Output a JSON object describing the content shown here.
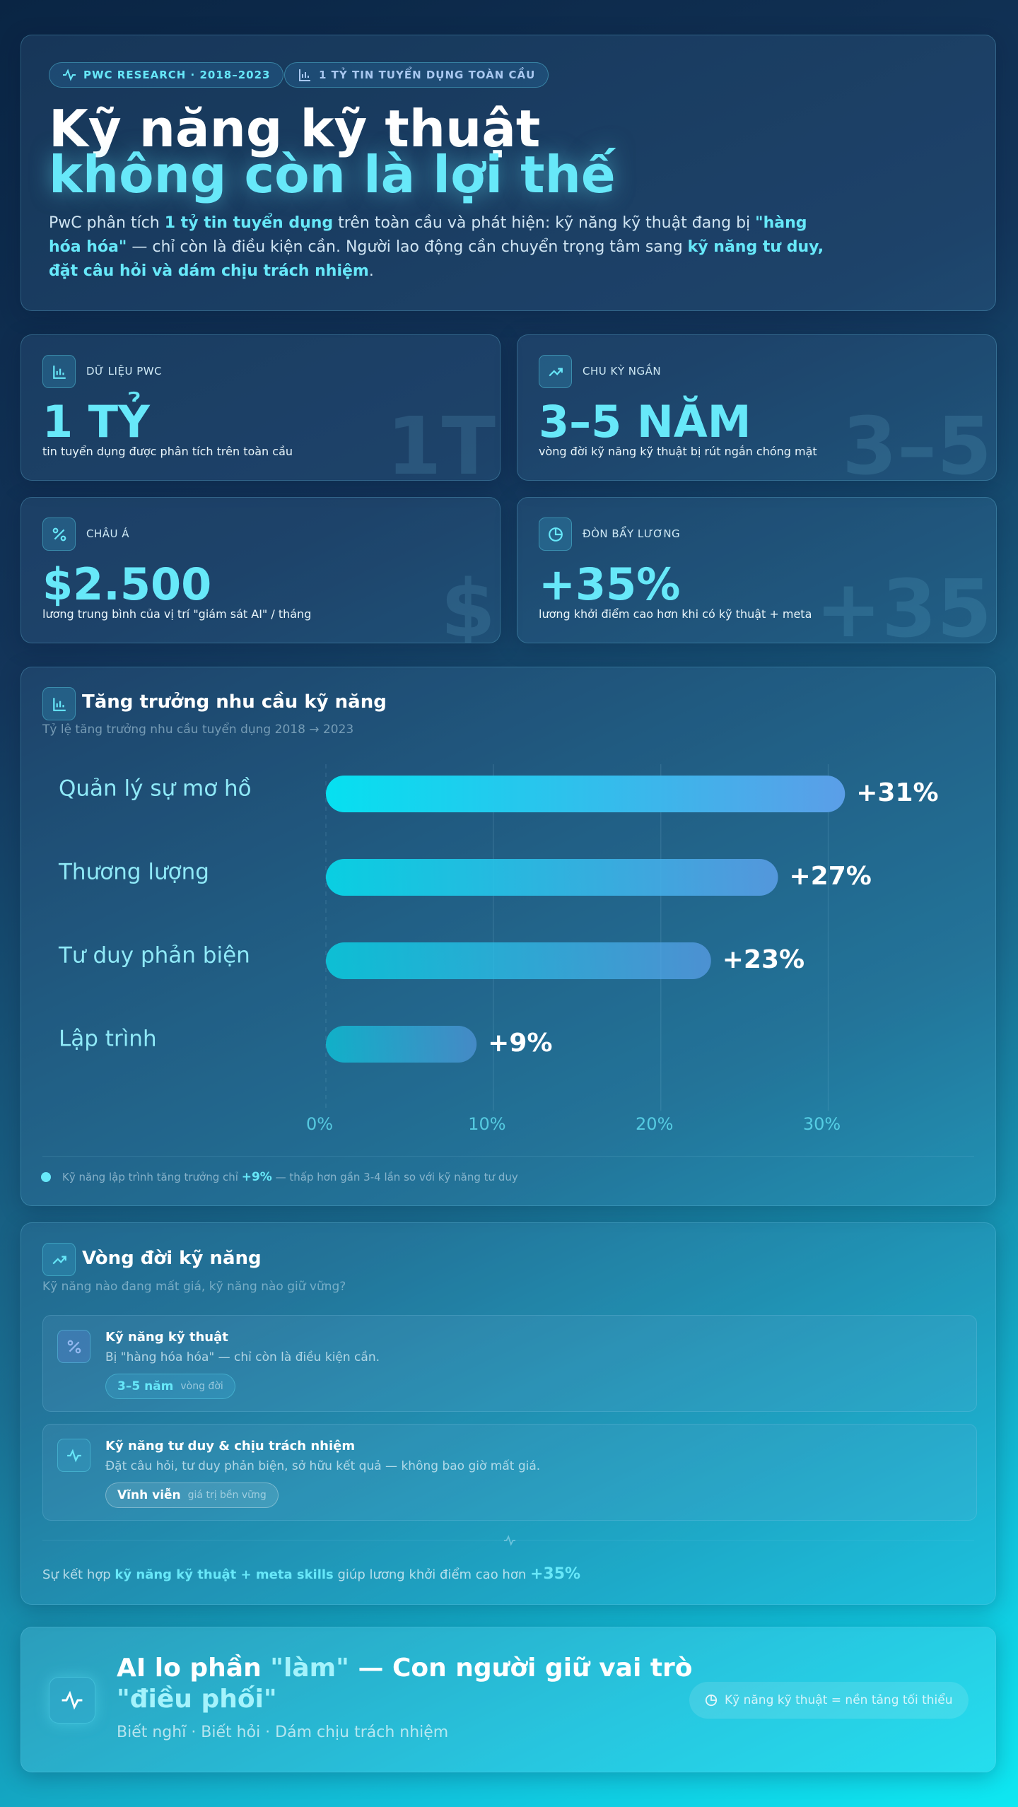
{
  "header": {
    "badges": [
      "PWC RESEARCH · 2018–2023",
      "1 TỶ TIN TUYỂN DỤNG TOÀN CẦU"
    ],
    "title_line1": "Kỹ năng kỹ thuật",
    "title_line2": "không còn là lợi thế",
    "intro": [
      "PwC phân tích ",
      "1 tỷ tin tuyển dụng",
      " trên toàn cầu và phát hiện: kỹ năng kỹ thuật đang bị ",
      "\"hàng hóa hóa\"",
      " — chỉ còn là điều kiện cần. Người lao động cần chuyển trọng tâm sang ",
      "kỹ năng tư duy, đặt câu hỏi và dám chịu trách nhiệm",
      "."
    ]
  },
  "stats": [
    {
      "label": "DỮ LIỆU PWC",
      "value": "1 TỶ",
      "description": "tin tuyển dụng được phân tích trên toàn cầu",
      "watermark": "1T"
    },
    {
      "label": "CHU KỲ NGẮN",
      "value": "3–5 NĂM",
      "description": "vòng đời kỹ năng kỹ thuật bị rút ngắn chóng mặt",
      "watermark": "3–5"
    },
    {
      "label": "CHÂU Á",
      "value": "$2.500",
      "description": "lương trung bình của vị trí \"giám sát AI\" / tháng",
      "watermark": "$"
    },
    {
      "label": "ĐÒN BẨY LƯƠNG",
      "value": "+35%",
      "description": "lương khởi điểm cao hơn khi có kỹ thuật + meta",
      "watermark": "+35"
    }
  ],
  "chart_data": {
    "type": "bar",
    "orientation": "horizontal",
    "title": "Tăng trưởng nhu cầu kỹ năng",
    "subtitle": "Tỷ lệ tăng trưởng nhu cầu tuyển dụng 2018 → 2023",
    "categories": [
      "Quản lý sự mơ hồ",
      "Thương lượng",
      "Tư duy phản biện",
      "Lập trình"
    ],
    "values": [
      31,
      27,
      23,
      9
    ],
    "value_labels": [
      "+31%",
      "+27%",
      "+23%",
      "+9%"
    ],
    "colors": [
      "#06e0f0",
      "#5b9ee8"
    ],
    "xlim": [
      0,
      35
    ],
    "xticks": [
      {
        "value": 0,
        "label": "0%"
      },
      {
        "value": 10,
        "label": "10%"
      },
      {
        "value": 20,
        "label": "20%"
      },
      {
        "value": 30,
        "label": "30%"
      }
    ],
    "grid": true,
    "footnote": [
      "Kỹ năng lập trình tăng trưởng chỉ ",
      "+9%",
      " — thấp hơn gần 3-4 lần so với kỹ năng tư duy"
    ]
  },
  "lifecycle": {
    "title": "Vòng đời kỹ năng",
    "subtitle": "Kỹ năng nào đang mất giá, kỹ năng nào giữ vững?",
    "items": [
      {
        "title": "Kỹ năng kỹ thuật",
        "description": "Bị \"hàng hóa hóa\" — chỉ còn là điều kiện cần.",
        "pill_value": "3–5 năm",
        "pill_note": "vòng đời"
      },
      {
        "title": "Kỹ năng tư duy & chịu trách nhiệm",
        "description": "Đặt câu hỏi, tư duy phản biện, sở hữu kết quả — không bao giờ mất giá.",
        "pill_value": "Vĩnh viễn",
        "pill_note": "giá trị bền vững"
      }
    ],
    "footer": [
      "Sự kết hợp ",
      "kỹ năng kỹ thuật + meta skills",
      " giúp lương khởi điểm cao hơn ",
      "+35%"
    ]
  },
  "closing": {
    "title": [
      "AI lo phần ",
      "\"làm\"",
      " — Con người giữ vai trò ",
      "\"điều phối\""
    ],
    "subtitle": "Biết nghĩ · Biết hỏi · Dám chịu trách nhiệm",
    "pill": "Kỹ năng kỹ thuật = nền tảng tối thiểu"
  }
}
